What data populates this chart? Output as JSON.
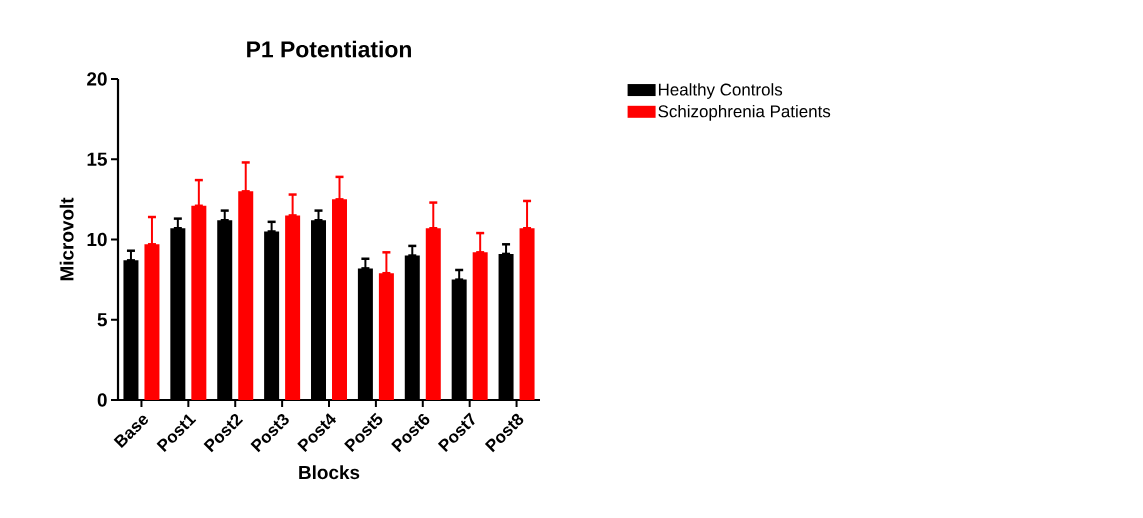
{
  "chart_data": {
    "type": "bar",
    "title": "P1 Potentiation",
    "xlabel": "Blocks",
    "ylabel": "Microvolt",
    "categories": [
      "Base",
      "Post1",
      "Post2",
      "Post3",
      "Post4",
      "Post5",
      "Post6",
      "Post7",
      "Post8"
    ],
    "series": [
      {
        "name": "Healthy Controls",
        "color": "#000000",
        "values": [
          8.7,
          10.7,
          11.2,
          10.5,
          11.2,
          8.2,
          9.0,
          7.5,
          9.1
        ],
        "errors": [
          [
            8.7,
            9.3
          ],
          [
            10.7,
            11.3
          ],
          [
            11.2,
            11.8
          ],
          [
            10.5,
            11.1
          ],
          [
            11.2,
            11.8
          ],
          [
            8.2,
            8.8
          ],
          [
            9.0,
            9.6
          ],
          [
            7.5,
            8.1
          ],
          [
            9.1,
            9.7
          ]
        ]
      },
      {
        "name": "Schizophrenia Patients",
        "color": "#ff0000",
        "values": [
          9.7,
          12.1,
          13.0,
          11.5,
          12.5,
          7.9,
          10.7,
          9.2,
          10.7
        ],
        "errors": [
          [
            9.7,
            11.4
          ],
          [
            12.1,
            13.7
          ],
          [
            13.0,
            14.8
          ],
          [
            11.5,
            12.8
          ],
          [
            12.5,
            13.9
          ],
          [
            7.9,
            9.2
          ],
          [
            10.7,
            12.3
          ],
          [
            9.2,
            10.4
          ],
          [
            10.7,
            12.4
          ]
        ]
      }
    ],
    "ylim": [
      0,
      20
    ],
    "yticks": [
      0,
      5,
      10,
      15,
      20
    ],
    "legend": "top right"
  }
}
